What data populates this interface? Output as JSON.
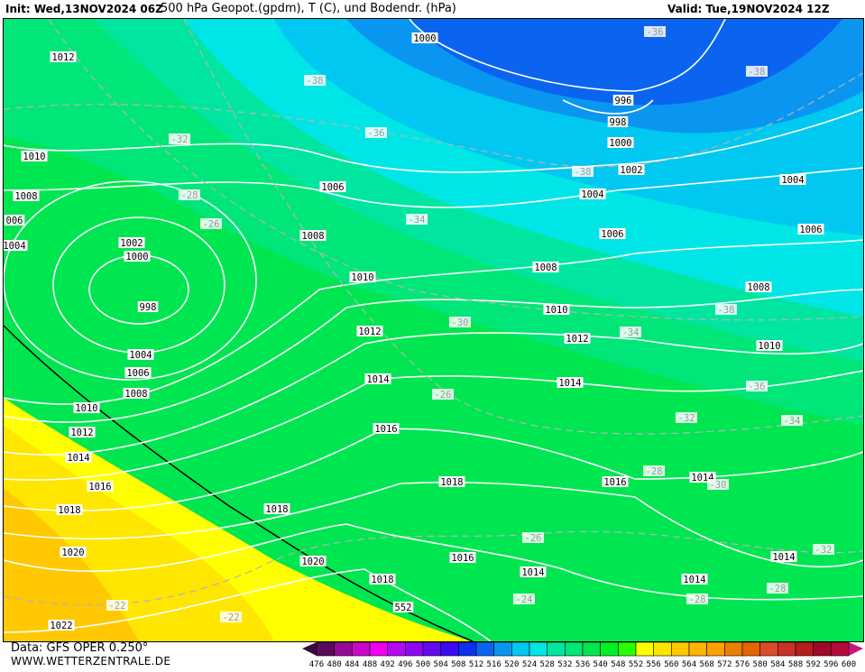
{
  "header": {
    "init": "Init: Wed,13NOV2024 06Z",
    "title": "500 hPa Geopot.(gpdm), T (C), und Bodendr. (hPa)",
    "valid": "Valid: Tue,19NOV2024 12Z"
  },
  "footer": {
    "data_source": "Data: GFS OPER 0.250°",
    "website": "WWW.WETTERZENTRALE.DE"
  },
  "colorbar": {
    "labels": [
      "476",
      "480",
      "484",
      "488",
      "492",
      "496",
      "500",
      "504",
      "508",
      "512",
      "516",
      "520",
      "524",
      "528",
      "532",
      "536",
      "540",
      "548",
      "552",
      "556",
      "560",
      "564",
      "568",
      "572",
      "576",
      "580",
      "584",
      "588",
      "592",
      "596",
      "600"
    ],
    "colors": [
      "#5a0a5a",
      "#960a96",
      "#c80ac8",
      "#f000f0",
      "#b40af0",
      "#8c0af0",
      "#640af0",
      "#3c0af0",
      "#0a32f0",
      "#0a64f0",
      "#0a96f0",
      "#00c8f0",
      "#00e6e6",
      "#00e6a0",
      "#00e678",
      "#00e650",
      "#00f028",
      "#28ff00",
      "#ffff00",
      "#ffe600",
      "#ffc800",
      "#ffb400",
      "#ffa000",
      "#e68200",
      "#e66400",
      "#dc4b28",
      "#c83228",
      "#b41e1e",
      "#a00a28",
      "#b40a3c"
    ],
    "low_arrow": "#3a0a3a",
    "high_arrow": "#c8147a"
  },
  "map": {
    "isobar_labels": [
      "1000",
      "996",
      "998",
      "1000",
      "1002",
      "1004",
      "1004",
      "1006",
      "1006",
      "1006",
      "1008",
      "1008",
      "1008",
      "1010",
      "1010",
      "1010",
      "1012",
      "1012",
      "1014",
      "1014",
      "1014",
      "1014",
      "1014",
      "1014",
      "1016",
      "1016",
      "1016",
      "1018",
      "1018",
      "1018",
      "1020",
      "1012",
      "1010",
      "1008",
      "006",
      "1004",
      "1002",
      "1000",
      "998",
      "1004",
      "1006",
      "1008",
      "1010",
      "1012",
      "1014",
      "1016",
      "1018",
      "1020",
      "1022",
      "552"
    ],
    "temperature_labels": [
      "-36",
      "-38",
      "-38",
      "-36",
      "-32",
      "-38",
      "-28",
      "-26",
      "-34",
      "-38",
      "-30",
      "-34",
      "-26",
      "-36",
      "-32",
      "-34",
      "-28",
      "-30",
      "-26",
      "-24",
      "-28",
      "-28",
      "-32",
      "-22",
      "-22"
    ]
  }
}
